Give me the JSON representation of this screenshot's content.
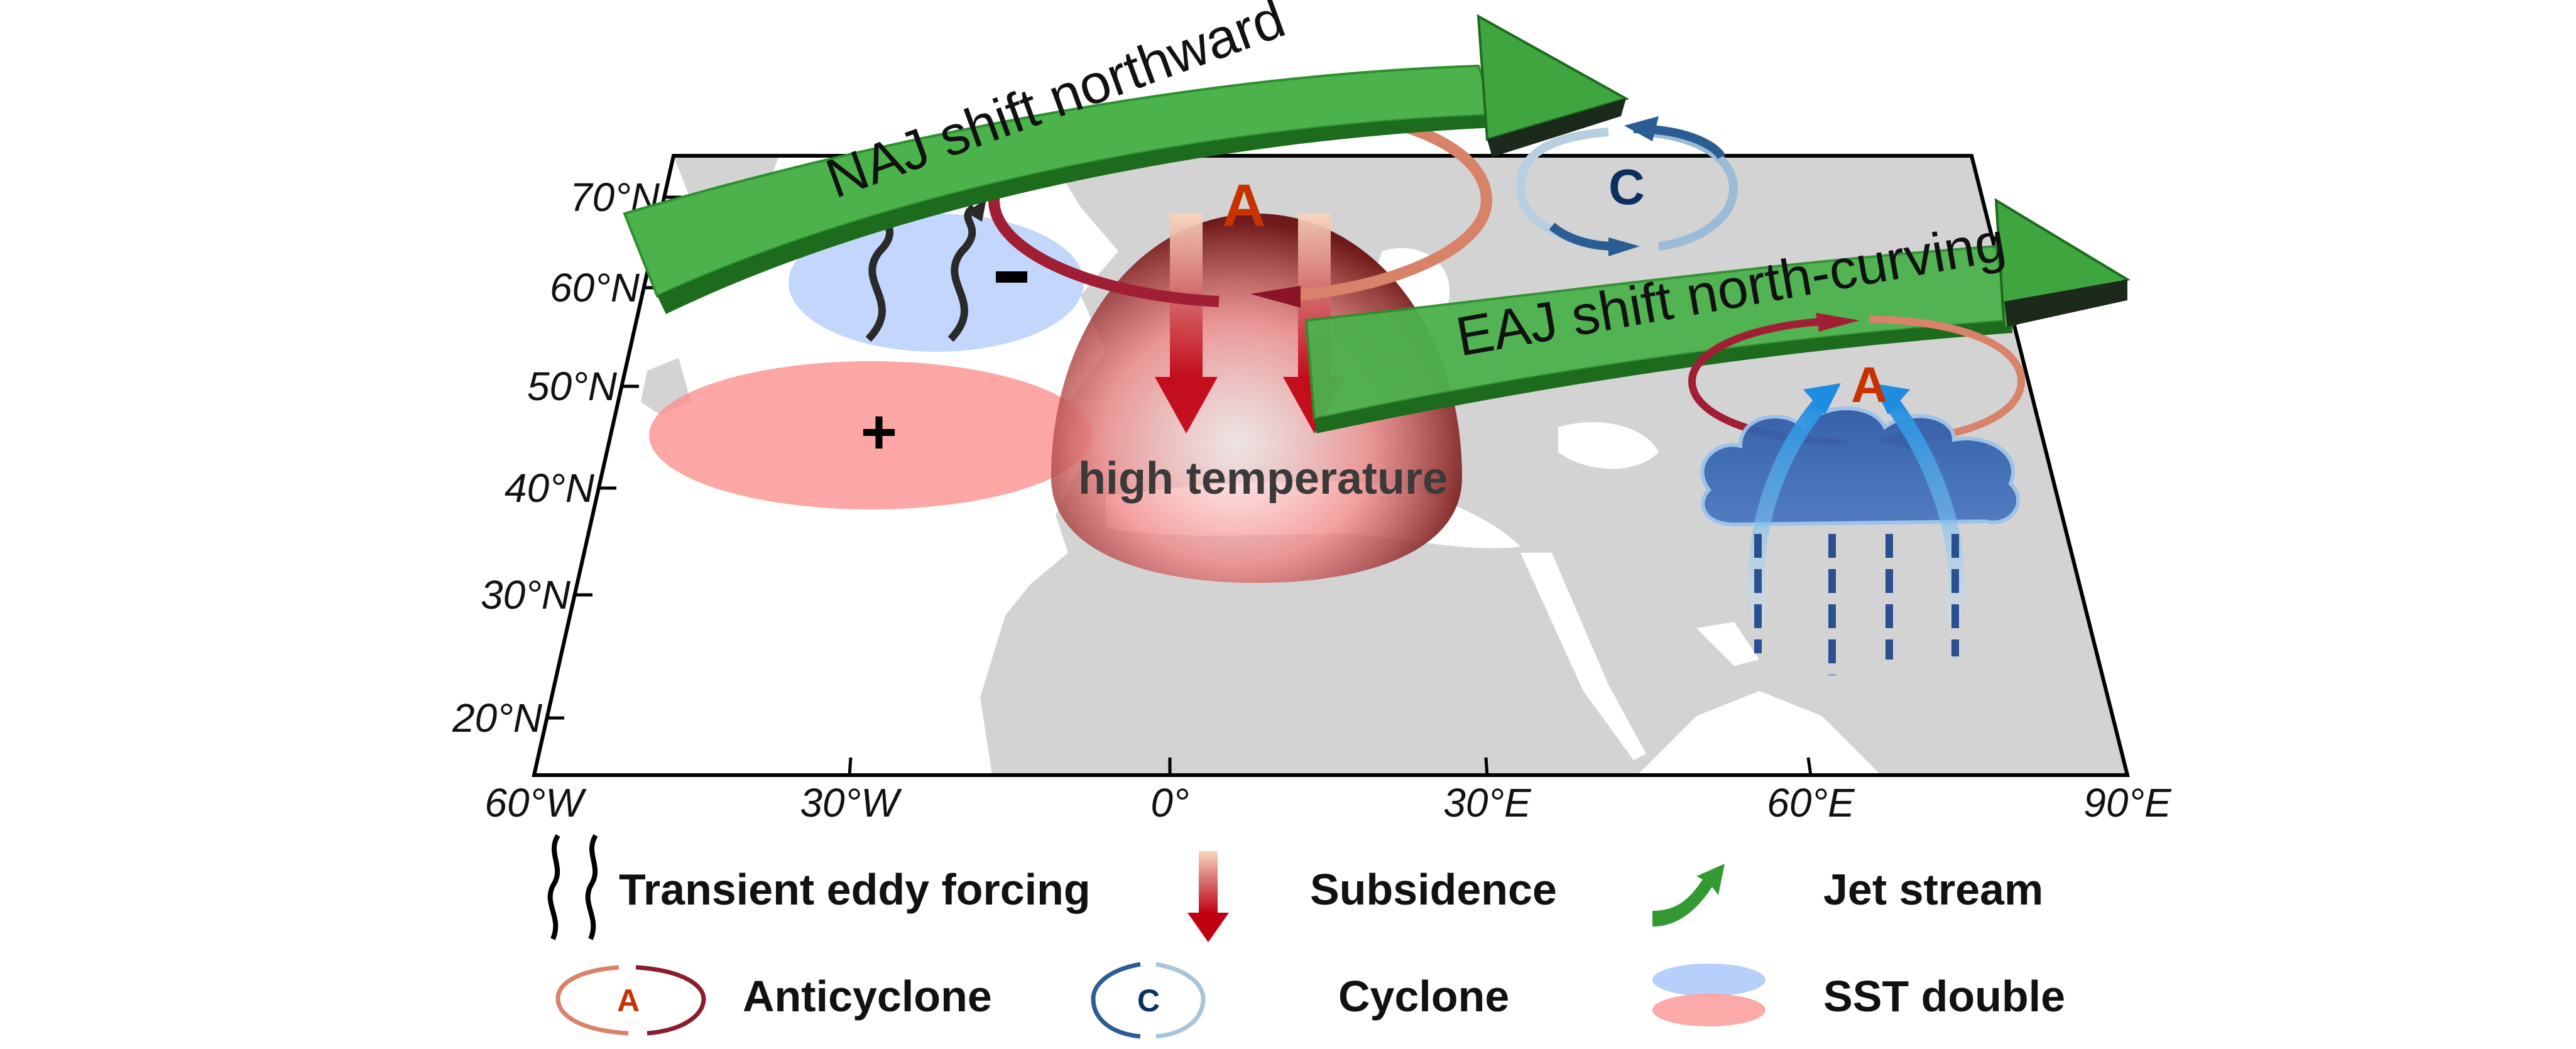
{
  "map": {
    "lat_labels": [
      "70°N",
      "60°N",
      "50°N",
      "40°N",
      "30°N",
      "20°N"
    ],
    "lon_labels": [
      "60°W",
      "30°W",
      "0°",
      "30°E",
      "60°E",
      "90°E"
    ],
    "land_color": "#d3d3d3"
  },
  "annotations": {
    "naj": "NAJ shift northward",
    "eaj": "EAJ shift north-curving",
    "anticyclone_main": "A",
    "anticyclone_east": "A",
    "cyclone": "C",
    "high_temp": "high temperature",
    "sst_negative": "-",
    "sst_positive": "+"
  },
  "legend": {
    "items": [
      {
        "label": "Transient eddy forcing",
        "icon": "wavy-arrows-icon"
      },
      {
        "label": "Subsidence",
        "icon": "subsidence-arrow-icon"
      },
      {
        "label": "Jet stream",
        "icon": "jet-stream-icon"
      },
      {
        "label": "Anticyclone",
        "icon": "anticyclone-icon",
        "letter": "A"
      },
      {
        "label": "Cyclone",
        "icon": "cyclone-icon",
        "letter": "C"
      },
      {
        "label": "SST double",
        "icon": "sst-double-icon"
      }
    ]
  },
  "colors": {
    "jet_green": "#4cb24c",
    "jet_dark": "#1d6b1d",
    "anticyclone_red": "#9b1c31",
    "cyclone_blue": "#2a5d93",
    "sst_cold": "#b7d0fb",
    "sst_warm": "#fca0a0",
    "letter_A": "#c83200",
    "letter_C": "#0b3060"
  }
}
